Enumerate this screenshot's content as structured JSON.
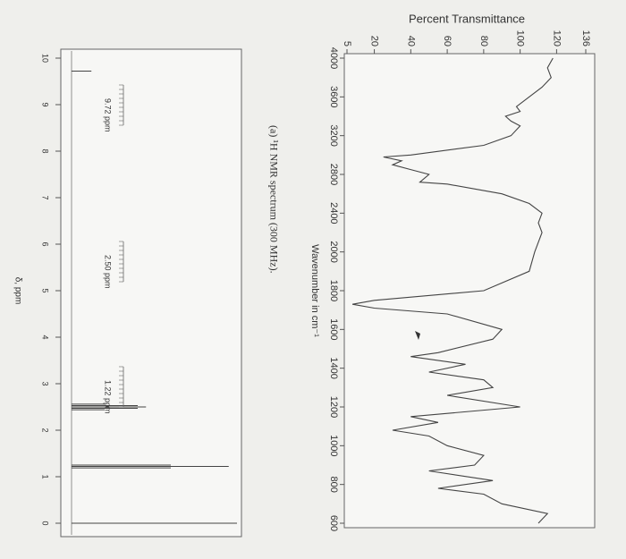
{
  "chart_data": [
    {
      "type": "line",
      "y_label": "Percent Transmittance",
      "x_label": "Wavenumber in cm⁻¹",
      "x": [
        4000,
        3900,
        3800,
        3700,
        3600,
        3500,
        3450,
        3400,
        3350,
        3300,
        3200,
        3100,
        3000,
        2980,
        2940,
        2900,
        2850,
        2800,
        2720,
        2700,
        2600,
        2500,
        2400,
        2300,
        2200,
        2100,
        2000,
        1900,
        1800,
        1750,
        1730,
        1710,
        1680,
        1600,
        1550,
        1480,
        1460,
        1420,
        1380,
        1340,
        1300,
        1260,
        1200,
        1150,
        1120,
        1080,
        1050,
        1000,
        950,
        900,
        870,
        820,
        780,
        750,
        700,
        650,
        600
      ],
      "values": [
        118,
        115,
        117,
        112,
        105,
        98,
        100,
        92,
        95,
        100,
        95,
        80,
        40,
        25,
        35,
        30,
        40,
        50,
        45,
        60,
        90,
        105,
        112,
        110,
        112,
        110,
        108,
        105,
        80,
        20,
        8,
        20,
        60,
        90,
        85,
        55,
        40,
        70,
        50,
        80,
        85,
        60,
        100,
        40,
        55,
        30,
        50,
        60,
        80,
        75,
        50,
        85,
        55,
        80,
        90,
        115,
        110
      ],
      "xlim": [
        4000,
        600
      ],
      "xticks": [
        4000,
        3600,
        3200,
        2800,
        2400,
        2000,
        1800,
        1600,
        1400,
        1200,
        1000,
        800,
        600
      ],
      "ylim": [
        5,
        136
      ],
      "yticks": [
        5,
        20,
        40,
        60,
        80,
        100,
        120,
        136
      ],
      "color": "#444444"
    },
    {
      "type": "stem",
      "title": "(a) ¹H NMR spectrum (300 MHz).",
      "x_label": "δ, ppm",
      "x": [
        9.72,
        2.56,
        2.53,
        2.5,
        2.47,
        2.44,
        1.25,
        1.22,
        1.19,
        0
      ],
      "values": [
        12,
        20,
        40,
        45,
        40,
        20,
        60,
        95,
        60,
        100
      ],
      "xlim": [
        10,
        0
      ],
      "xticks": [
        10,
        9,
        8,
        7,
        6,
        5,
        4,
        3,
        2,
        1,
        0
      ],
      "ylim": [
        0,
        100
      ],
      "annotations": [
        "9.72 ppm",
        "2.50 ppm",
        "1.22 ppm"
      ],
      "color": "#444444"
    }
  ]
}
